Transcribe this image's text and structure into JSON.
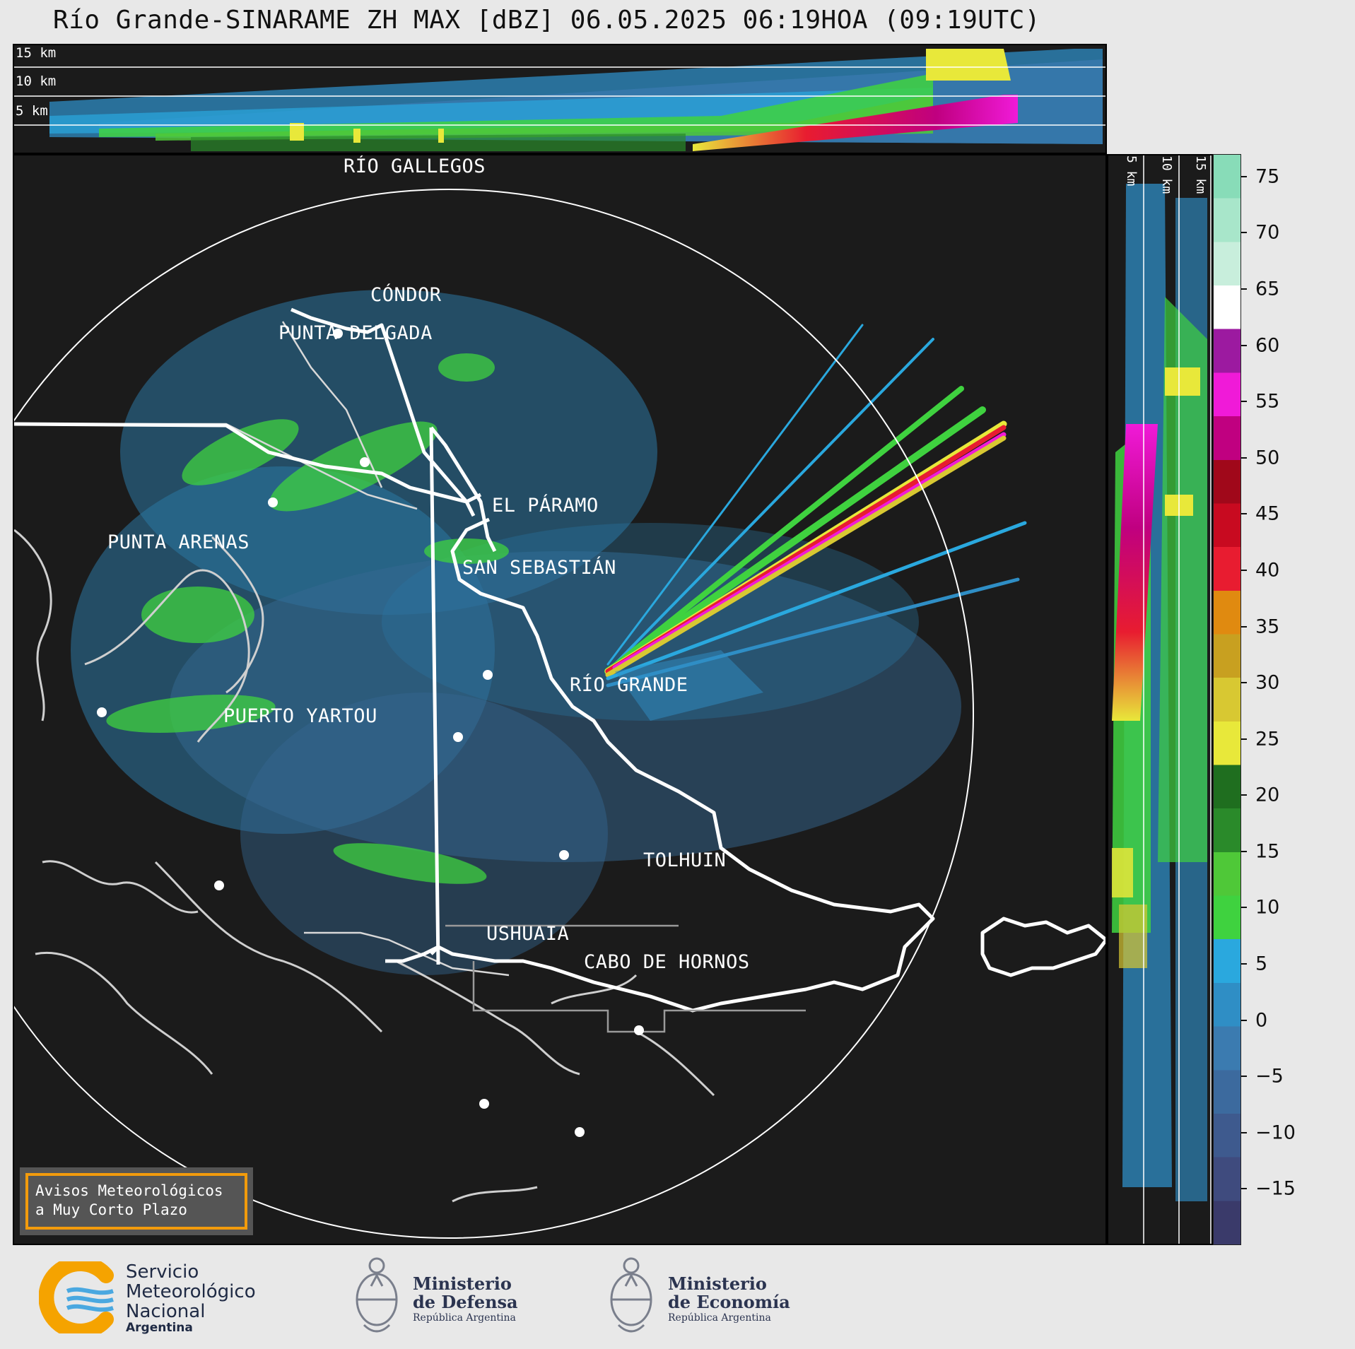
{
  "header": {
    "title": "Río Grande-SINARAME ZH MAX [dBZ] 06.05.2025 06:19HOA (09:19UTC)"
  },
  "top_panel": {
    "altitude_labels": [
      "15 km",
      "10 km",
      "5 km"
    ]
  },
  "right_panel": {
    "altitude_labels": [
      "5 km",
      "10 km",
      "15 km"
    ]
  },
  "colorbar": {
    "ticks": [
      "75",
      "70",
      "65",
      "60",
      "55",
      "50",
      "45",
      "40",
      "35",
      "30",
      "25",
      "20",
      "15",
      "10",
      "5",
      "0",
      "−5",
      "−10",
      "−15"
    ],
    "range_dbz": [
      -20,
      77
    ],
    "colors": [
      "#3a3a6a",
      "#3f4b7e",
      "#3e5a8e",
      "#3c6a9e",
      "#3b7bb0",
      "#2f8ec5",
      "#2aa8de",
      "#3fd23f",
      "#4fc838",
      "#2a8a2a",
      "#1f6e1f",
      "#e8e83a",
      "#d8c832",
      "#c8a020",
      "#e08a10",
      "#e81c30",
      "#c80a20",
      "#a0081a",
      "#c00080",
      "#f01ad8",
      "#9c1aa0",
      "#ffffff",
      "#c8eedc",
      "#a8e6ca",
      "#88dcb8"
    ]
  },
  "map": {
    "cities": [
      {
        "name": "RÍO GALLEGOS"
      },
      {
        "name": "CÓNDOR"
      },
      {
        "name": "PUNTA DELGADA"
      },
      {
        "name": "PUNTA ARENAS"
      },
      {
        "name": "EL PÁRAMO"
      },
      {
        "name": "SAN SEBASTIÁN"
      },
      {
        "name": "RÍO GRANDE"
      },
      {
        "name": "PUERTO YARTOU"
      },
      {
        "name": "TOLHUIN"
      },
      {
        "name": "USHUAIA"
      },
      {
        "name": "CABO DE HORNOS"
      }
    ]
  },
  "warning": {
    "line1": "Avisos Meteorológicos",
    "line2": "a Muy Corto Plazo"
  },
  "logos": {
    "smn": {
      "line1": "Servicio",
      "line2": "Meteorológico",
      "line3": "Nacional",
      "line4": "Argentina"
    },
    "defensa": {
      "line1": "Ministerio",
      "line2": "de Defensa",
      "line3": "República Argentina"
    },
    "economia": {
      "line1": "Ministerio",
      "line2": "de Economía",
      "line3": "República Argentina"
    }
  }
}
